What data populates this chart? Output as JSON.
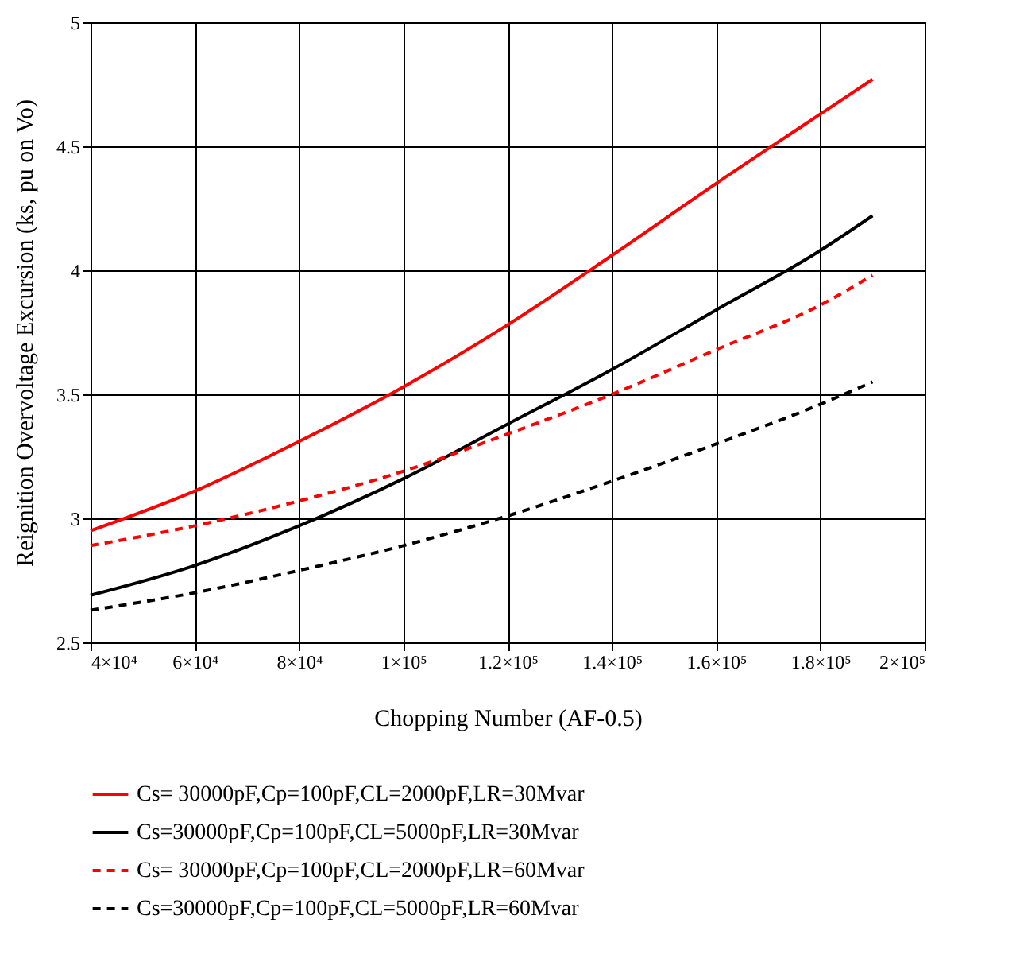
{
  "chart_data": {
    "type": "line",
    "xlabel": "Chopping Number (AF-0.5)",
    "ylabel": "Reignition Overvoltage Excursion (ks, pu on Vo)",
    "x": [
      40000,
      60000,
      80000,
      100000,
      120000,
      140000,
      160000,
      180000,
      190000
    ],
    "series": [
      {
        "name": "Cs= 30000pF,Cp=100pF,CL=2000pF,LR=30Mvar",
        "color": "#ff0000",
        "line_style": "solid",
        "values": [
          2.95,
          3.11,
          3.31,
          3.53,
          3.78,
          4.06,
          4.35,
          4.63,
          4.77
        ]
      },
      {
        "name": "Cs=30000pF,Cp=100pF,CL=5000pF,LR=30Mvar",
        "color": "#000000",
        "line_style": "solid",
        "values": [
          2.69,
          2.81,
          2.97,
          3.16,
          3.38,
          3.6,
          3.84,
          4.08,
          4.22
        ]
      },
      {
        "name": "Cs= 30000pF,Cp=100pF,CL=2000pF,LR=60Mvar",
        "color": "#ff0000",
        "line_style": "dashed",
        "values": [
          2.89,
          2.97,
          3.07,
          3.19,
          3.34,
          3.5,
          3.68,
          3.86,
          3.98
        ]
      },
      {
        "name": "Cs=30000pF,Cp=100pF,CL=5000pF,LR=60Mvar",
        "color": "#000000",
        "line_style": "dashed",
        "values": [
          2.63,
          2.7,
          2.79,
          2.89,
          3.01,
          3.15,
          3.3,
          3.46,
          3.55
        ]
      }
    ],
    "xlim": [
      40000,
      200000
    ],
    "xticks": [
      {
        "value": 40000,
        "label": "4×10⁴"
      },
      {
        "value": 60000,
        "label": "6×10⁴"
      },
      {
        "value": 80000,
        "label": "8×10⁴"
      },
      {
        "value": 100000,
        "label": "1×10⁵"
      },
      {
        "value": 120000,
        "label": "1.2×10⁵"
      },
      {
        "value": 140000,
        "label": "1.4×10⁵"
      },
      {
        "value": 160000,
        "label": "1.6×10⁵"
      },
      {
        "value": 180000,
        "label": "1.8×10⁵"
      },
      {
        "value": 200000,
        "label": "2×10⁵"
      }
    ],
    "ylim": [
      2.5,
      5
    ],
    "yticks": [
      2.5,
      3,
      3.5,
      4,
      4.5,
      5
    ],
    "grid": true,
    "legend": "bottom",
    "marker": "none"
  }
}
